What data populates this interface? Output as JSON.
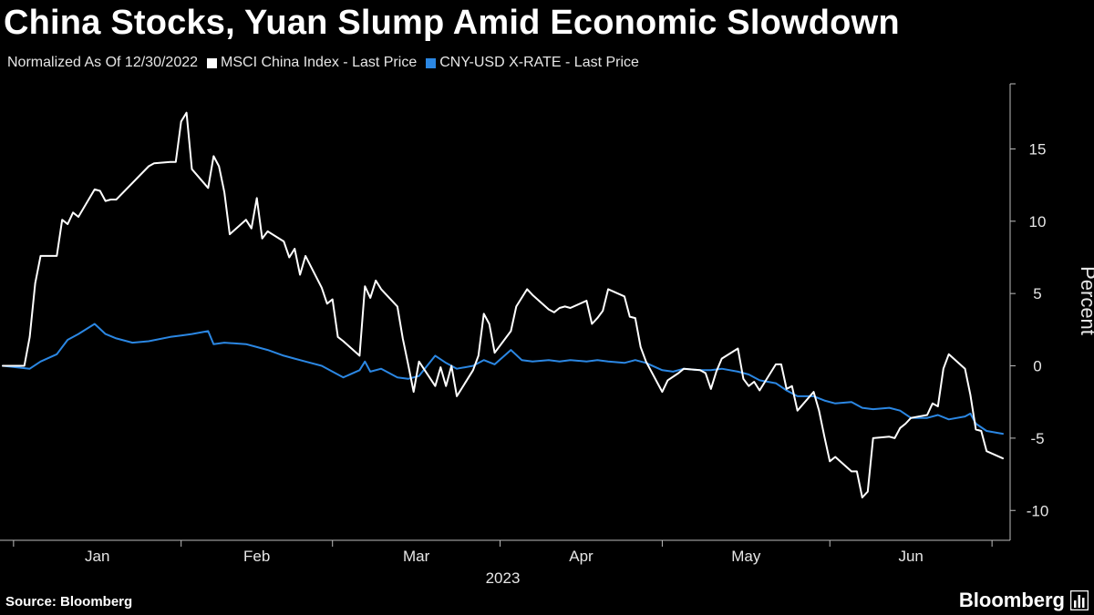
{
  "title": "China Stocks, Yuan Slump Amid Economic Slowdown",
  "legend": {
    "note": "Normalized As Of 12/30/2022",
    "series": [
      {
        "label": "MSCI China Index - Last Price",
        "color": "#ffffff"
      },
      {
        "label": "CNY-USD X-RATE - Last Price",
        "color": "#2b87e3"
      }
    ]
  },
  "source": "Source: Bloomberg",
  "brand": "Bloomberg",
  "chart_data": {
    "type": "line",
    "ylabel": "Percent",
    "year_label": "2023",
    "y_axis_side": "right",
    "ylim": [
      -12,
      19.5
    ],
    "yticks": [
      -10,
      -5,
      0,
      5,
      10,
      15
    ],
    "months": [
      "Jan",
      "Feb",
      "Mar",
      "Apr",
      "May",
      "Jun"
    ],
    "xlim": [
      "2022-12-30",
      "2023-07-03"
    ],
    "grid": false,
    "series": [
      {
        "name": "MSCI China Index - Last Price",
        "color": "#ffffff",
        "points": [
          [
            "2022-12-30",
            0.0
          ],
          [
            "2023-01-03",
            0.0
          ],
          [
            "2023-01-04",
            2.0
          ],
          [
            "2023-01-05",
            5.7
          ],
          [
            "2023-01-06",
            7.6
          ],
          [
            "2023-01-09",
            7.6
          ],
          [
            "2023-01-10",
            10.1
          ],
          [
            "2023-01-11",
            9.8
          ],
          [
            "2023-01-12",
            10.6
          ],
          [
            "2023-01-13",
            10.3
          ],
          [
            "2023-01-16",
            12.2
          ],
          [
            "2023-01-17",
            12.1
          ],
          [
            "2023-01-18",
            11.4
          ],
          [
            "2023-01-19",
            11.5
          ],
          [
            "2023-01-20",
            11.5
          ],
          [
            "2023-01-26",
            13.8
          ],
          [
            "2023-01-27",
            14.0
          ],
          [
            "2023-01-30",
            14.1
          ],
          [
            "2023-01-31",
            14.1
          ],
          [
            "2023-02-01",
            16.9
          ],
          [
            "2023-02-02",
            17.5
          ],
          [
            "2023-02-03",
            13.6
          ],
          [
            "2023-02-06",
            12.3
          ],
          [
            "2023-02-07",
            14.5
          ],
          [
            "2023-02-08",
            13.8
          ],
          [
            "2023-02-09",
            12.0
          ],
          [
            "2023-02-10",
            9.1
          ],
          [
            "2023-02-13",
            10.1
          ],
          [
            "2023-02-14",
            9.5
          ],
          [
            "2023-02-15",
            11.6
          ],
          [
            "2023-02-16",
            8.8
          ],
          [
            "2023-02-17",
            9.3
          ],
          [
            "2023-02-20",
            8.6
          ],
          [
            "2023-02-21",
            7.5
          ],
          [
            "2023-02-22",
            8.1
          ],
          [
            "2023-02-23",
            6.3
          ],
          [
            "2023-02-24",
            7.6
          ],
          [
            "2023-02-27",
            5.4
          ],
          [
            "2023-02-28",
            4.3
          ],
          [
            "2023-03-01",
            4.6
          ],
          [
            "2023-03-02",
            2.0
          ],
          [
            "2023-03-03",
            1.7
          ],
          [
            "2023-03-06",
            0.7
          ],
          [
            "2023-03-07",
            5.5
          ],
          [
            "2023-03-08",
            4.7
          ],
          [
            "2023-03-09",
            5.9
          ],
          [
            "2023-03-10",
            5.3
          ],
          [
            "2023-03-13",
            4.1
          ],
          [
            "2023-03-14",
            1.9
          ],
          [
            "2023-03-15",
            0.1
          ],
          [
            "2023-03-16",
            -1.8
          ],
          [
            "2023-03-17",
            0.3
          ],
          [
            "2023-03-20",
            -1.4
          ],
          [
            "2023-03-21",
            -0.1
          ],
          [
            "2023-03-22",
            -1.4
          ],
          [
            "2023-03-23",
            0.0
          ],
          [
            "2023-03-24",
            -2.1
          ],
          [
            "2023-03-27",
            -0.3
          ],
          [
            "2023-03-28",
            0.7
          ],
          [
            "2023-03-29",
            3.6
          ],
          [
            "2023-03-30",
            2.9
          ],
          [
            "2023-03-31",
            0.9
          ],
          [
            "2023-04-03",
            2.4
          ],
          [
            "2023-04-04",
            4.1
          ],
          [
            "2023-04-06",
            5.3
          ],
          [
            "2023-04-07",
            4.9
          ],
          [
            "2023-04-10",
            3.9
          ],
          [
            "2023-04-11",
            3.7
          ],
          [
            "2023-04-12",
            4.0
          ],
          [
            "2023-04-13",
            4.1
          ],
          [
            "2023-04-14",
            4.0
          ],
          [
            "2023-04-17",
            4.5
          ],
          [
            "2023-04-18",
            2.9
          ],
          [
            "2023-04-19",
            3.3
          ],
          [
            "2023-04-20",
            3.8
          ],
          [
            "2023-04-21",
            5.3
          ],
          [
            "2023-04-24",
            4.8
          ],
          [
            "2023-04-25",
            3.4
          ],
          [
            "2023-04-26",
            3.3
          ],
          [
            "2023-04-27",
            1.3
          ],
          [
            "2023-04-28",
            0.3
          ],
          [
            "2023-05-01",
            -1.8
          ],
          [
            "2023-05-02",
            -1.0
          ],
          [
            "2023-05-04",
            -0.5
          ],
          [
            "2023-05-05",
            -0.2
          ],
          [
            "2023-05-08",
            -0.3
          ],
          [
            "2023-05-09",
            -0.5
          ],
          [
            "2023-05-10",
            -1.6
          ],
          [
            "2023-05-11",
            -0.4
          ],
          [
            "2023-05-12",
            0.5
          ],
          [
            "2023-05-15",
            1.2
          ],
          [
            "2023-05-16",
            -0.9
          ],
          [
            "2023-05-17",
            -1.4
          ],
          [
            "2023-05-18",
            -1.1
          ],
          [
            "2023-05-19",
            -1.7
          ],
          [
            "2023-05-22",
            0.1
          ],
          [
            "2023-05-23",
            0.1
          ],
          [
            "2023-05-24",
            -1.6
          ],
          [
            "2023-05-25",
            -1.4
          ],
          [
            "2023-05-26",
            -3.1
          ],
          [
            "2023-05-29",
            -1.8
          ],
          [
            "2023-05-30",
            -3.1
          ],
          [
            "2023-05-31",
            -4.9
          ],
          [
            "2023-06-01",
            -6.6
          ],
          [
            "2023-06-02",
            -6.3
          ],
          [
            "2023-06-05",
            -7.3
          ],
          [
            "2023-06-06",
            -7.3
          ],
          [
            "2023-06-07",
            -9.1
          ],
          [
            "2023-06-08",
            -8.7
          ],
          [
            "2023-06-09",
            -5.0
          ],
          [
            "2023-06-12",
            -4.9
          ],
          [
            "2023-06-13",
            -5.0
          ],
          [
            "2023-06-14",
            -4.3
          ],
          [
            "2023-06-15",
            -4.0
          ],
          [
            "2023-06-16",
            -3.6
          ],
          [
            "2023-06-19",
            -3.4
          ],
          [
            "2023-06-20",
            -2.6
          ],
          [
            "2023-06-21",
            -2.8
          ],
          [
            "2023-06-22",
            -0.2
          ],
          [
            "2023-06-23",
            0.8
          ],
          [
            "2023-06-26",
            -0.2
          ],
          [
            "2023-06-27",
            -2.0
          ],
          [
            "2023-06-28",
            -4.4
          ],
          [
            "2023-06-29",
            -4.5
          ],
          [
            "2023-06-30",
            -5.9
          ],
          [
            "2023-07-03",
            -6.4
          ]
        ]
      },
      {
        "name": "CNY-USD X-RATE - Last Price",
        "color": "#2b87e3",
        "points": [
          [
            "2022-12-30",
            0.0
          ],
          [
            "2023-01-04",
            -0.2
          ],
          [
            "2023-01-06",
            0.3
          ],
          [
            "2023-01-09",
            0.8
          ],
          [
            "2023-01-11",
            1.8
          ],
          [
            "2023-01-13",
            2.2
          ],
          [
            "2023-01-16",
            2.9
          ],
          [
            "2023-01-18",
            2.2
          ],
          [
            "2023-01-20",
            1.9
          ],
          [
            "2023-01-23",
            1.6
          ],
          [
            "2023-01-26",
            1.7
          ],
          [
            "2023-01-30",
            2.0
          ],
          [
            "2023-02-01",
            2.1
          ],
          [
            "2023-02-03",
            2.2
          ],
          [
            "2023-02-06",
            2.4
          ],
          [
            "2023-02-07",
            1.5
          ],
          [
            "2023-02-09",
            1.6
          ],
          [
            "2023-02-13",
            1.5
          ],
          [
            "2023-02-15",
            1.3
          ],
          [
            "2023-02-17",
            1.1
          ],
          [
            "2023-02-20",
            0.7
          ],
          [
            "2023-02-22",
            0.5
          ],
          [
            "2023-02-24",
            0.3
          ],
          [
            "2023-02-27",
            0.0
          ],
          [
            "2023-03-01",
            -0.4
          ],
          [
            "2023-03-03",
            -0.8
          ],
          [
            "2023-03-06",
            -0.3
          ],
          [
            "2023-03-07",
            0.3
          ],
          [
            "2023-03-08",
            -0.4
          ],
          [
            "2023-03-10",
            -0.2
          ],
          [
            "2023-03-13",
            -0.8
          ],
          [
            "2023-03-15",
            -0.9
          ],
          [
            "2023-03-17",
            -0.7
          ],
          [
            "2023-03-20",
            0.7
          ],
          [
            "2023-03-22",
            0.2
          ],
          [
            "2023-03-24",
            -0.2
          ],
          [
            "2023-03-27",
            0.0
          ],
          [
            "2023-03-29",
            0.4
          ],
          [
            "2023-03-31",
            0.1
          ],
          [
            "2023-04-03",
            1.1
          ],
          [
            "2023-04-05",
            0.4
          ],
          [
            "2023-04-07",
            0.3
          ],
          [
            "2023-04-10",
            0.4
          ],
          [
            "2023-04-12",
            0.3
          ],
          [
            "2023-04-14",
            0.4
          ],
          [
            "2023-04-17",
            0.3
          ],
          [
            "2023-04-19",
            0.4
          ],
          [
            "2023-04-21",
            0.3
          ],
          [
            "2023-04-24",
            0.2
          ],
          [
            "2023-04-26",
            0.4
          ],
          [
            "2023-04-28",
            0.2
          ],
          [
            "2023-05-01",
            -0.3
          ],
          [
            "2023-05-03",
            -0.4
          ],
          [
            "2023-05-05",
            -0.2
          ],
          [
            "2023-05-08",
            -0.3
          ],
          [
            "2023-05-10",
            -0.3
          ],
          [
            "2023-05-12",
            -0.2
          ],
          [
            "2023-05-15",
            -0.4
          ],
          [
            "2023-05-17",
            -0.6
          ],
          [
            "2023-05-19",
            -1.0
          ],
          [
            "2023-05-22",
            -1.2
          ],
          [
            "2023-05-24",
            -1.7
          ],
          [
            "2023-05-26",
            -2.1
          ],
          [
            "2023-05-29",
            -2.1
          ],
          [
            "2023-05-31",
            -2.4
          ],
          [
            "2023-06-02",
            -2.6
          ],
          [
            "2023-06-05",
            -2.5
          ],
          [
            "2023-06-07",
            -2.9
          ],
          [
            "2023-06-09",
            -3.0
          ],
          [
            "2023-06-12",
            -2.9
          ],
          [
            "2023-06-14",
            -3.1
          ],
          [
            "2023-06-16",
            -3.6
          ],
          [
            "2023-06-19",
            -3.6
          ],
          [
            "2023-06-21",
            -3.4
          ],
          [
            "2023-06-23",
            -3.7
          ],
          [
            "2023-06-26",
            -3.5
          ],
          [
            "2023-06-27",
            -3.3
          ],
          [
            "2023-06-28",
            -4.0
          ],
          [
            "2023-06-30",
            -4.5
          ],
          [
            "2023-07-03",
            -4.7
          ]
        ]
      }
    ]
  }
}
